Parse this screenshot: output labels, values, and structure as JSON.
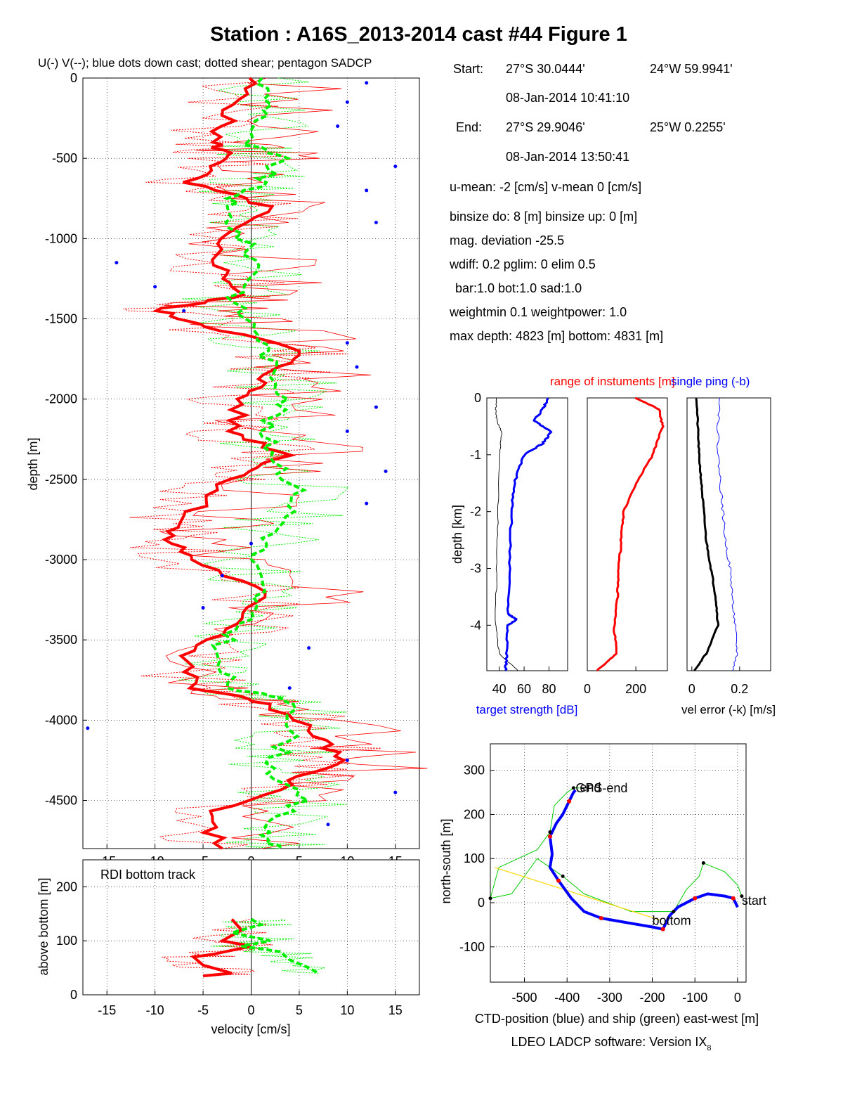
{
  "title": "Station : A16S_2013-2014 cast #44  Figure 1",
  "footer": {
    "software": "LDEO LADCP software: Version IX",
    "software_sub": "8"
  },
  "info": {
    "start_label": "Start:",
    "start_lat": "27°S 30.0444'",
    "start_lon": "24°W 59.9941'",
    "start_time": "08-Jan-2014 10:41:10",
    "end_label": "End:",
    "end_lat": "27°S 29.9046'",
    "end_lon": "25°W  0.2255'",
    "end_time": "08-Jan-2014 13:50:41",
    "means": "u-mean:  -2 [cm/s]    v-mean   0 [cm/s]",
    "binsize": "binsize do: 8 [m]  binsize up:  0 [m]",
    "magdev": "mag. deviation -25.5",
    "wdiff": "wdiff: 0.2  pglim: 0  elim 0.5",
    "bar": "bar:1.0 bot:1.0 sad:1.0",
    "weight": "weightmin 0.1  weightpower: 1.0",
    "depths": "max depth: 4823 [m]   bottom: 4831 [m]"
  },
  "colors": {
    "u": "#ff0000",
    "v": "#00ee00",
    "down": "#0000ff",
    "ctd": "#0000ff",
    "ship": "#00cc00",
    "line": "#ffd700"
  },
  "chart_data": [
    {
      "id": "velocity-profile",
      "type": "line",
      "title": "U(-) V(--); blue dots down cast; dotted shear; pentagon SADCP",
      "xlabel": "",
      "ylabel": "depth [m]",
      "xlim": [
        -17.5,
        17.5
      ],
      "ylim": [
        -4800,
        0
      ],
      "xticks": [
        -15,
        -10,
        -5,
        0,
        5,
        10,
        15
      ],
      "yticks": [
        0,
        -500,
        -1000,
        -1500,
        -2000,
        -2500,
        -3000,
        -3500,
        -4000,
        -4500
      ],
      "grid": true,
      "series": [
        {
          "name": "U",
          "style": "thick",
          "color": "#ff0000",
          "depth": [
            0,
            -200,
            -400,
            -500,
            -650,
            -800,
            -1000,
            -1200,
            -1350,
            -1450,
            -1550,
            -1700,
            -1850,
            -2000,
            -2200,
            -2350,
            -2500,
            -2700,
            -2850,
            -3000,
            -3200,
            -3400,
            -3600,
            -3800,
            -3900,
            -4100,
            -4250,
            -4400,
            -4600,
            -4800
          ],
          "values": [
            0,
            -2,
            -4,
            -2,
            -7,
            2,
            -4,
            -3,
            -1,
            -10,
            -4,
            5,
            2,
            -1,
            -2,
            4,
            -2,
            -6,
            -9,
            -6,
            1,
            -1,
            -7,
            -6,
            2,
            7,
            9,
            4,
            -5,
            -3
          ]
        },
        {
          "name": "V",
          "style": "dashed",
          "color": "#00ee00",
          "depth": [
            0,
            -200,
            -400,
            -500,
            -650,
            -800,
            -1000,
            -1200,
            -1400,
            -1600,
            -1800,
            -2000,
            -2200,
            -2400,
            -2600,
            -2800,
            -3000,
            -3200,
            -3400,
            -3600,
            -3800,
            -3900,
            -4100,
            -4300,
            -4500,
            -4700,
            -4800
          ],
          "values": [
            1,
            2,
            -1,
            3,
            1,
            -3,
            -1,
            1,
            -2,
            1,
            2,
            4,
            1,
            3,
            5,
            3,
            0,
            1,
            -1,
            -4,
            -2,
            5,
            4,
            2,
            5,
            1,
            3
          ]
        },
        {
          "name": "down cast",
          "style": "dots",
          "color": "#0000ff",
          "depth": [
            -30,
            -150,
            -300,
            -550,
            -700,
            -900,
            -1150,
            -1300,
            -1450,
            -1650,
            -1800,
            -2050,
            -2200,
            -2450,
            -2650,
            -2900,
            -3100,
            -3300,
            -3550,
            -3800,
            -4050,
            -4250,
            -4450,
            -4650
          ],
          "values": [
            12,
            10,
            9,
            15,
            12,
            13,
            -14,
            -10,
            -7,
            10,
            11,
            13,
            10,
            14,
            12,
            0,
            -3,
            -5,
            6,
            4,
            -17,
            10,
            15,
            8
          ]
        }
      ]
    },
    {
      "id": "bottom-track",
      "type": "line",
      "title": "RDI bottom track",
      "xlabel": "velocity [cm/s]",
      "ylabel": "above bottom [m]",
      "xlim": [
        -17.5,
        17.5
      ],
      "ylim": [
        0,
        250
      ],
      "xticks": [
        -15,
        -10,
        -5,
        0,
        5,
        10,
        15
      ],
      "yticks": [
        0,
        100,
        200
      ],
      "grid": true,
      "series": [
        {
          "name": "U",
          "style": "thick",
          "color": "#ff0000",
          "height": [
            140,
            120,
            100,
            90,
            75,
            70,
            55,
            40,
            35
          ],
          "values": [
            -2,
            -1,
            -3,
            0,
            -4,
            -6,
            -5,
            -2,
            -5
          ]
        },
        {
          "name": "V",
          "style": "dashed",
          "color": "#00ee00",
          "height": [
            140,
            130,
            115,
            100,
            90,
            80,
            65,
            50,
            40
          ],
          "values": [
            0,
            1,
            -2,
            2,
            -1,
            3,
            4,
            6,
            7
          ]
        }
      ]
    },
    {
      "id": "target-strength",
      "type": "line",
      "xlabel": "target strength [dB]",
      "ylabel": "depth [km]",
      "xlim": [
        30,
        95
      ],
      "ylim": [
        -4.8,
        0
      ],
      "xticks": [
        40,
        60,
        80
      ],
      "yticks": [
        0,
        -1,
        -2,
        -3,
        -4
      ],
      "grid": false,
      "series": [
        {
          "name": "single ping",
          "color": "#000000",
          "depth": [
            0,
            -0.2,
            -0.4,
            -0.6,
            -1.0,
            -2.0,
            -3.0,
            -3.9,
            -4.5,
            -4.8
          ],
          "values": [
            38,
            37,
            38,
            42,
            40,
            39,
            38,
            37,
            40,
            55
          ]
        },
        {
          "name": "target strength",
          "color": "#0000ff",
          "depth": [
            0,
            -0.2,
            -0.4,
            -0.6,
            -0.8,
            -1.0,
            -1.5,
            -2.0,
            -3.0,
            -3.8,
            -3.9,
            -4.0,
            -4.5,
            -4.8
          ],
          "values": [
            80,
            75,
            68,
            82,
            75,
            60,
            52,
            50,
            48,
            47,
            54,
            47,
            46,
            45
          ]
        }
      ]
    },
    {
      "id": "range",
      "type": "line",
      "title": "range of instuments [m]",
      "xlabel": "",
      "ylabel": "",
      "xlim": [
        0,
        330
      ],
      "ylim": [
        -4.8,
        0
      ],
      "xticks": [
        0,
        200
      ],
      "yticks": [],
      "grid": false,
      "series": [
        {
          "name": "range",
          "color": "#ff0000",
          "depth": [
            0,
            -0.2,
            -0.5,
            -1.0,
            -1.5,
            -2.0,
            -2.5,
            -3.0,
            -3.5,
            -4.0,
            -4.5,
            -4.8
          ],
          "values": [
            200,
            295,
            310,
            270,
            200,
            150,
            140,
            130,
            125,
            110,
            120,
            40
          ]
        }
      ]
    },
    {
      "id": "vel-error",
      "type": "line",
      "xlabel": "vel error (-k) [m/s]",
      "ylabel": "",
      "xlim": [
        -0.02,
        0.33
      ],
      "ylim": [
        -4.8,
        0
      ],
      "xticks": [
        0,
        0.2
      ],
      "yticks": [],
      "grid": false,
      "series": [
        {
          "name": "vel error",
          "color": "#000000",
          "depth": [
            0,
            -0.5,
            -1.0,
            -1.5,
            -2.0,
            -2.5,
            -3.0,
            -3.5,
            -4.0,
            -4.5,
            -4.8
          ],
          "values": [
            0.02,
            0.025,
            0.03,
            0.04,
            0.05,
            0.06,
            0.08,
            0.1,
            0.11,
            0.06,
            0.01
          ]
        },
        {
          "name": "single ping",
          "color": "#0000ff",
          "depth": [
            0,
            -0.5,
            -1.0,
            -1.5,
            -2.0,
            -2.5,
            -3.0,
            -3.5,
            -4.0,
            -4.5,
            -4.8
          ],
          "values": [
            0.12,
            0.11,
            0.11,
            0.12,
            0.13,
            0.14,
            0.16,
            0.17,
            0.18,
            0.19,
            0.17
          ]
        }
      ],
      "labels": {
        "single_ping": "single ping (-b)"
      }
    },
    {
      "id": "position",
      "type": "line",
      "xlabel": "CTD-position (blue) and ship (green) east-west [m]",
      "ylabel": "north-south [m]",
      "xlim": [
        -580,
        20
      ],
      "ylim": [
        -180,
        360
      ],
      "xticks": [
        -500,
        -400,
        -300,
        -200,
        -100,
        0
      ],
      "yticks": [
        -100,
        0,
        100,
        200,
        300
      ],
      "grid": true,
      "annotations": [
        {
          "text": "start",
          "x": 10,
          "y": -5
        },
        {
          "text": "bottom",
          "x": -200,
          "y": -50
        },
        {
          "text": "GPS-end",
          "x": -380,
          "y": 250
        },
        {
          "text": "end",
          "x": -370,
          "y": 252
        }
      ],
      "series": [
        {
          "name": "CTD",
          "color": "#0000ff",
          "x": [
            0,
            -10,
            -30,
            -70,
            -100,
            -140,
            -160,
            -175,
            -200,
            -260,
            -320,
            -360,
            -390,
            -420,
            -440,
            -435,
            -440,
            -425,
            -410,
            -395,
            -385,
            -380
          ],
          "y": [
            -10,
            10,
            15,
            20,
            10,
            -10,
            -30,
            -60,
            -55,
            -45,
            -35,
            -20,
            10,
            50,
            80,
            110,
            150,
            180,
            200,
            230,
            250,
            255
          ]
        },
        {
          "name": "ship",
          "color": "#00cc00",
          "x": [
            10,
            0,
            -30,
            -80,
            -90,
            -120,
            -150,
            -250,
            -360,
            -410,
            -470,
            -530,
            -580,
            -560,
            -470,
            -440,
            -430,
            -400,
            -385,
            -370
          ],
          "y": [
            15,
            40,
            70,
            90,
            60,
            30,
            -20,
            -20,
            20,
            60,
            100,
            20,
            10,
            80,
            120,
            160,
            220,
            250,
            260,
            260
          ]
        },
        {
          "name": "straight",
          "color": "#ffd700",
          "x": [
            -570,
            -180
          ],
          "y": [
            80,
            -40
          ]
        }
      ]
    }
  ]
}
